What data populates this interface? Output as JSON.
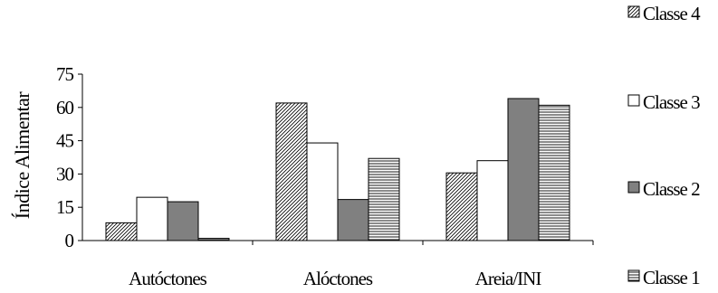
{
  "chart_data": {
    "type": "bar",
    "ylabel": "Índice Alimentar",
    "xlabel": "",
    "ylim": [
      0,
      75
    ],
    "yticks": [
      0,
      15,
      30,
      45,
      60,
      75
    ],
    "categories": [
      "Autóctones",
      "Alóctones",
      "Areia/INI"
    ],
    "series": [
      {
        "name": "Classe 4",
        "values": [
          8,
          62,
          30.5
        ],
        "fill": "diagonal-hatch"
      },
      {
        "name": "Classe 3",
        "values": [
          19.5,
          44,
          36
        ],
        "fill": "white"
      },
      {
        "name": "Classe 2",
        "values": [
          17.5,
          18.5,
          64
        ],
        "fill": "gray"
      },
      {
        "name": "Classe 1",
        "values": [
          1,
          37,
          61
        ],
        "fill": "horizontal-hatch"
      }
    ],
    "legend_order": [
      "Classe 4",
      "Classe 3",
      "Classe 2",
      "Classe 1"
    ],
    "legend_position": "right",
    "grid": false,
    "colors": {
      "gray": "#808080",
      "stroke": "#000000",
      "background": "#ffffff"
    }
  }
}
